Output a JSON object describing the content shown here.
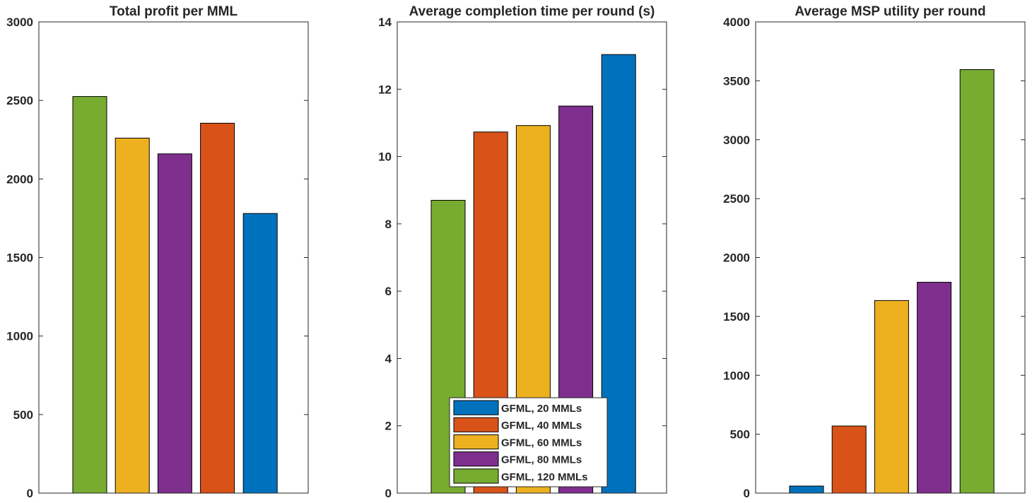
{
  "colors": {
    "blue": "#0072BD",
    "orange": "#D95319",
    "yellow": "#EDB120",
    "purple": "#7E2F8E",
    "green": "#77AC30",
    "axis": "#262626"
  },
  "chart_data": [
    {
      "type": "bar",
      "title": "Total profit per MML",
      "ylim": [
        0,
        3000
      ],
      "yticks": [
        0,
        500,
        1000,
        1500,
        2000,
        2500,
        3000
      ],
      "bars": [
        {
          "series": "GFML, 120 MMLs",
          "value": 2525,
          "color": "green"
        },
        {
          "series": "GFML, 80 MMLs",
          "value": 2160,
          "color": "purple"
        },
        {
          "series": "GFML, 40 MMLs",
          "value": 2355,
          "color": "orange"
        },
        {
          "series": "GFML, 60 MMLs",
          "value": 2260,
          "color": "yellow"
        },
        {
          "series": "GFML, 20 MMLs",
          "value": 1780,
          "color": "blue"
        }
      ],
      "order": [
        0,
        2,
        3,
        1,
        4
      ],
      "grid": false
    },
    {
      "type": "bar",
      "title": "Average completion time per round (s)",
      "ylim": [
        0,
        14
      ],
      "yticks": [
        0,
        2,
        4,
        6,
        8,
        10,
        12,
        14
      ],
      "bars": [
        {
          "series": "GFML, 120 MMLs",
          "value": 8.7,
          "color": "green"
        },
        {
          "series": "GFML, 40 MMLs",
          "value": 10.73,
          "color": "orange"
        },
        {
          "series": "GFML, 60 MMLs",
          "value": 10.92,
          "color": "yellow"
        },
        {
          "series": "GFML, 80 MMLs",
          "value": 11.5,
          "color": "purple"
        },
        {
          "series": "GFML, 20 MMLs",
          "value": 13.03,
          "color": "blue"
        }
      ],
      "order": [
        0,
        1,
        2,
        3,
        4
      ],
      "grid": false,
      "legend": {
        "placement": "bottom-center",
        "entries": [
          {
            "label": "GFML, 20 MMLs",
            "color": "blue"
          },
          {
            "label": "GFML, 40 MMLs",
            "color": "orange"
          },
          {
            "label": "GFML, 60 MMLs",
            "color": "yellow"
          },
          {
            "label": "GFML, 80 MMLs",
            "color": "purple"
          },
          {
            "label": "GFML, 120 MMLs",
            "color": "green"
          }
        ]
      }
    },
    {
      "type": "bar",
      "title": "Average MSP utility per round",
      "ylim": [
        0,
        4000
      ],
      "yticks": [
        0,
        500,
        1000,
        1500,
        2000,
        2500,
        3000,
        3500,
        4000
      ],
      "bars": [
        {
          "series": "GFML, 20 MMLs",
          "value": 60,
          "color": "blue"
        },
        {
          "series": "GFML, 40 MMLs",
          "value": 570,
          "color": "orange"
        },
        {
          "series": "GFML, 60 MMLs",
          "value": 1635,
          "color": "yellow"
        },
        {
          "series": "GFML, 80 MMLs",
          "value": 1790,
          "color": "purple"
        },
        {
          "series": "GFML, 120 MMLs",
          "value": 3595,
          "color": "green"
        }
      ],
      "order": [
        0,
        1,
        2,
        3,
        4
      ],
      "grid": false
    }
  ]
}
